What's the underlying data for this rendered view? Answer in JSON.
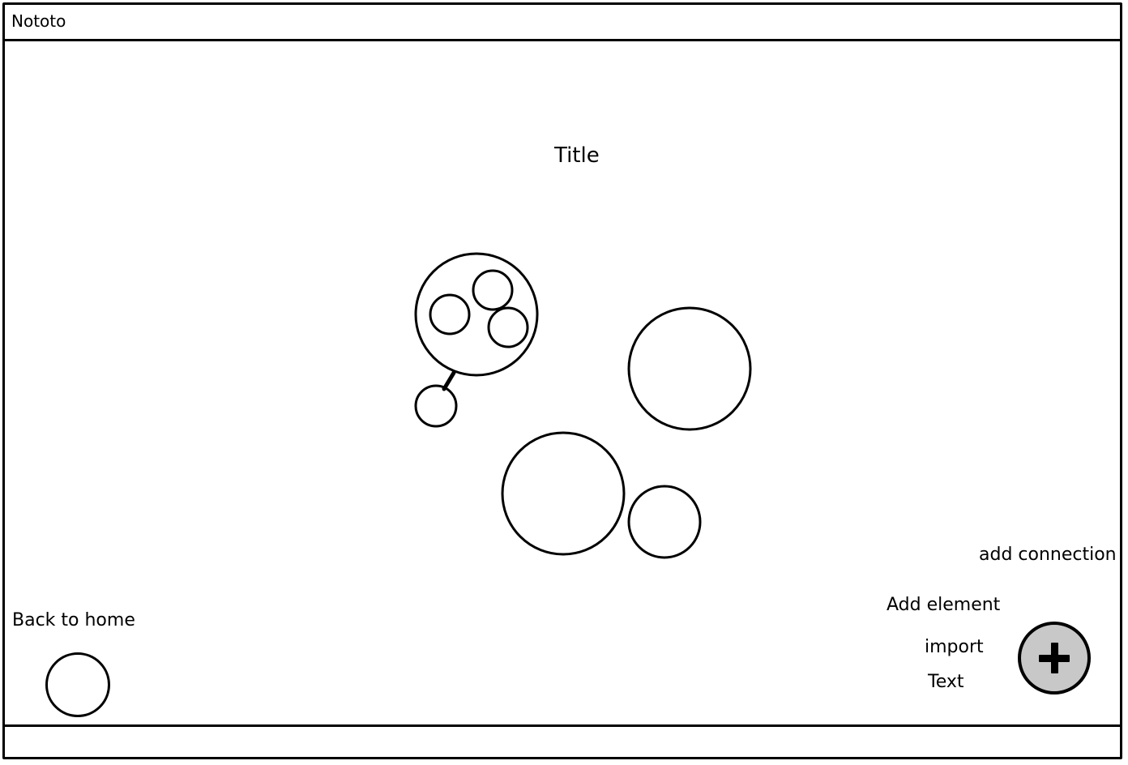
{
  "window": {
    "app_title": "Nototo"
  },
  "canvas": {
    "title": "Title"
  },
  "navigation": {
    "back_label": "Back to home"
  },
  "actions": {
    "add_connection": "add connection",
    "add_element": "Add element",
    "import": "import",
    "text": "Text"
  },
  "fab": {
    "icon": "plus-icon",
    "fill_color": "#c8c8c8"
  }
}
